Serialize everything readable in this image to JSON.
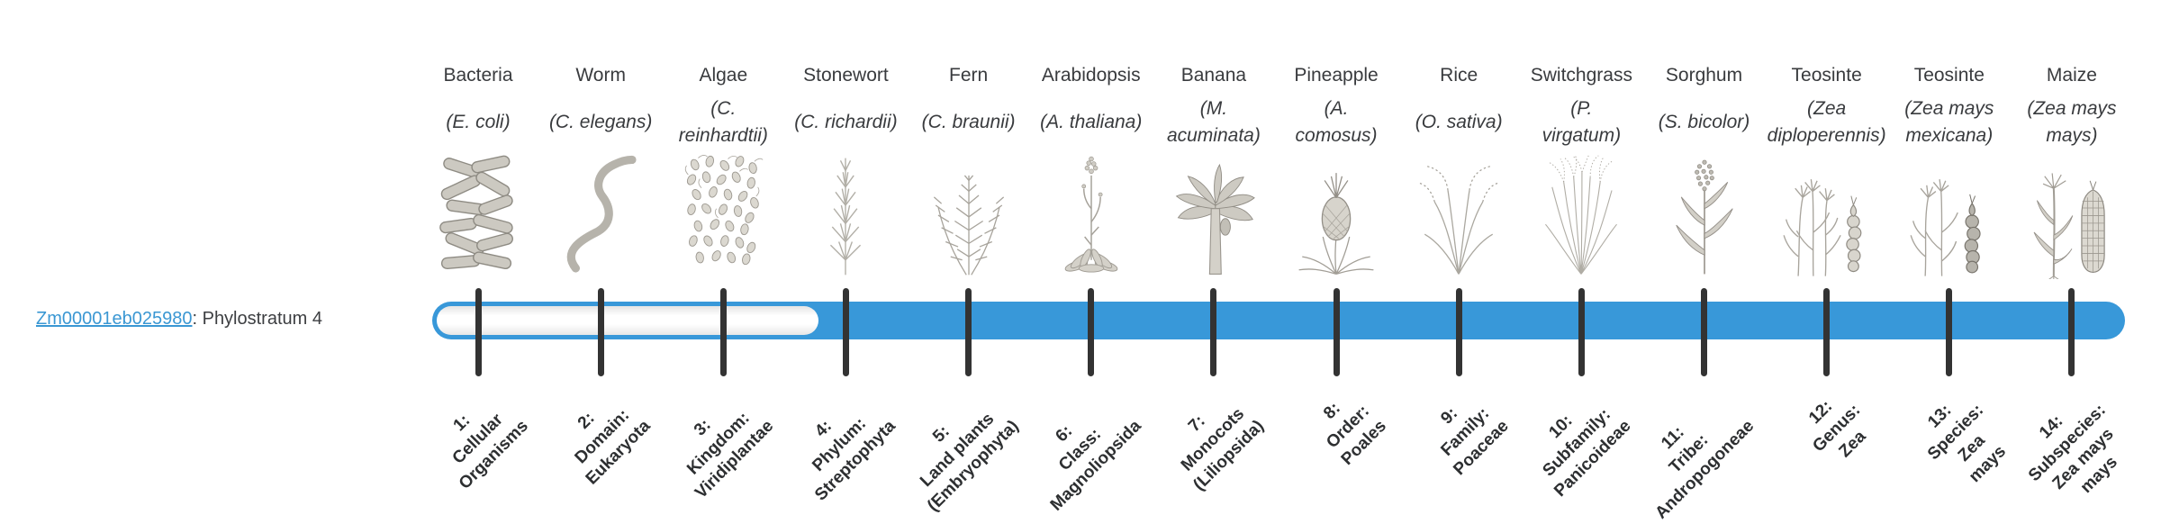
{
  "figure": {
    "background": "#ffffff"
  },
  "gene": {
    "id": "Zm00001eb025980",
    "suffix": ": Phylostratum 4",
    "phylostratum": 4
  },
  "timeline": {
    "total_strata": 14,
    "filled_from_stratum": 4,
    "unfilled_strata": [
      1,
      2,
      3
    ]
  },
  "colors": {
    "bar_blue": "#3898d9",
    "tick_dark": "#333333",
    "link_blue": "#3a97d3",
    "text_dark": "#3c3e41"
  },
  "organisms": [
    {
      "name": "Bacteria",
      "sci_lines": [
        "(E. coli)"
      ],
      "icon": "bacteria-icon"
    },
    {
      "name": "Worm",
      "sci_lines": [
        "(C. elegans)"
      ],
      "icon": "worm-icon"
    },
    {
      "name": "Algae",
      "sci_lines": [
        "(C.",
        "reinhardtii)"
      ],
      "icon": "algae-icon"
    },
    {
      "name": "Stonewort",
      "sci_lines": [
        "(C. richardii)"
      ],
      "icon": "stonewort-icon"
    },
    {
      "name": "Fern",
      "sci_lines": [
        "(C. braunii)"
      ],
      "icon": "fern-icon"
    },
    {
      "name": "Arabidopsis",
      "sci_lines": [
        "(A. thaliana)"
      ],
      "icon": "arabidopsis-icon"
    },
    {
      "name": "Banana",
      "sci_lines": [
        "(M.",
        "acuminata)"
      ],
      "icon": "banana-icon"
    },
    {
      "name": "Pineapple",
      "sci_lines": [
        "(A.",
        "comosus)"
      ],
      "icon": "pineapple-icon"
    },
    {
      "name": "Rice",
      "sci_lines": [
        "(O. sativa)"
      ],
      "icon": "rice-icon"
    },
    {
      "name": "Switchgrass",
      "sci_lines": [
        "(P.",
        "virgatum)"
      ],
      "icon": "switchgrass-icon"
    },
    {
      "name": "Sorghum",
      "sci_lines": [
        "(S. bicolor)"
      ],
      "icon": "sorghum-icon"
    },
    {
      "name": "Teosinte",
      "sci_lines": [
        "(Zea",
        "diploperennis)"
      ],
      "icon": "teosinte-diploperennis-icon"
    },
    {
      "name": "Teosinte",
      "sci_lines": [
        "(Zea mays",
        "mexicana)"
      ],
      "icon": "teosinte-mexicana-icon"
    },
    {
      "name": "Maize",
      "sci_lines": [
        "(Zea mays",
        "mays)"
      ],
      "icon": "maize-icon"
    }
  ],
  "strata": [
    {
      "num": 1,
      "lines": [
        "1:",
        "Cellular",
        "Organisms"
      ]
    },
    {
      "num": 2,
      "lines": [
        "2:",
        "Domain:",
        "Eukaryota"
      ]
    },
    {
      "num": 3,
      "lines": [
        "3:",
        "Kingdom:",
        "Viridiplantae"
      ]
    },
    {
      "num": 4,
      "lines": [
        "4:",
        "Phylum:",
        "Streptophyta"
      ]
    },
    {
      "num": 5,
      "lines": [
        "5:",
        "Land plants",
        "(Embryophyta)"
      ]
    },
    {
      "num": 6,
      "lines": [
        "6:",
        "Class:",
        "Magnoliopsida"
      ]
    },
    {
      "num": 7,
      "lines": [
        "7:",
        "Monocots",
        "(Liliopsida)"
      ]
    },
    {
      "num": 8,
      "lines": [
        "8:",
        "Order:",
        "Poales"
      ]
    },
    {
      "num": 9,
      "lines": [
        "9:",
        "Family:",
        "Poaceae"
      ]
    },
    {
      "num": 10,
      "lines": [
        "10:",
        "Subfamily:",
        "Panicoideae"
      ]
    },
    {
      "num": 11,
      "lines": [
        "11:",
        "Tribe:",
        "Andropogoneae"
      ]
    },
    {
      "num": 12,
      "lines": [
        "12:",
        "Genus:",
        "Zea"
      ]
    },
    {
      "num": 13,
      "lines": [
        "13:",
        "Species:",
        "Zea",
        "mays"
      ]
    },
    {
      "num": 14,
      "lines": [
        "14:",
        "Subspecies:",
        "Zea mays",
        "mays"
      ]
    }
  ]
}
